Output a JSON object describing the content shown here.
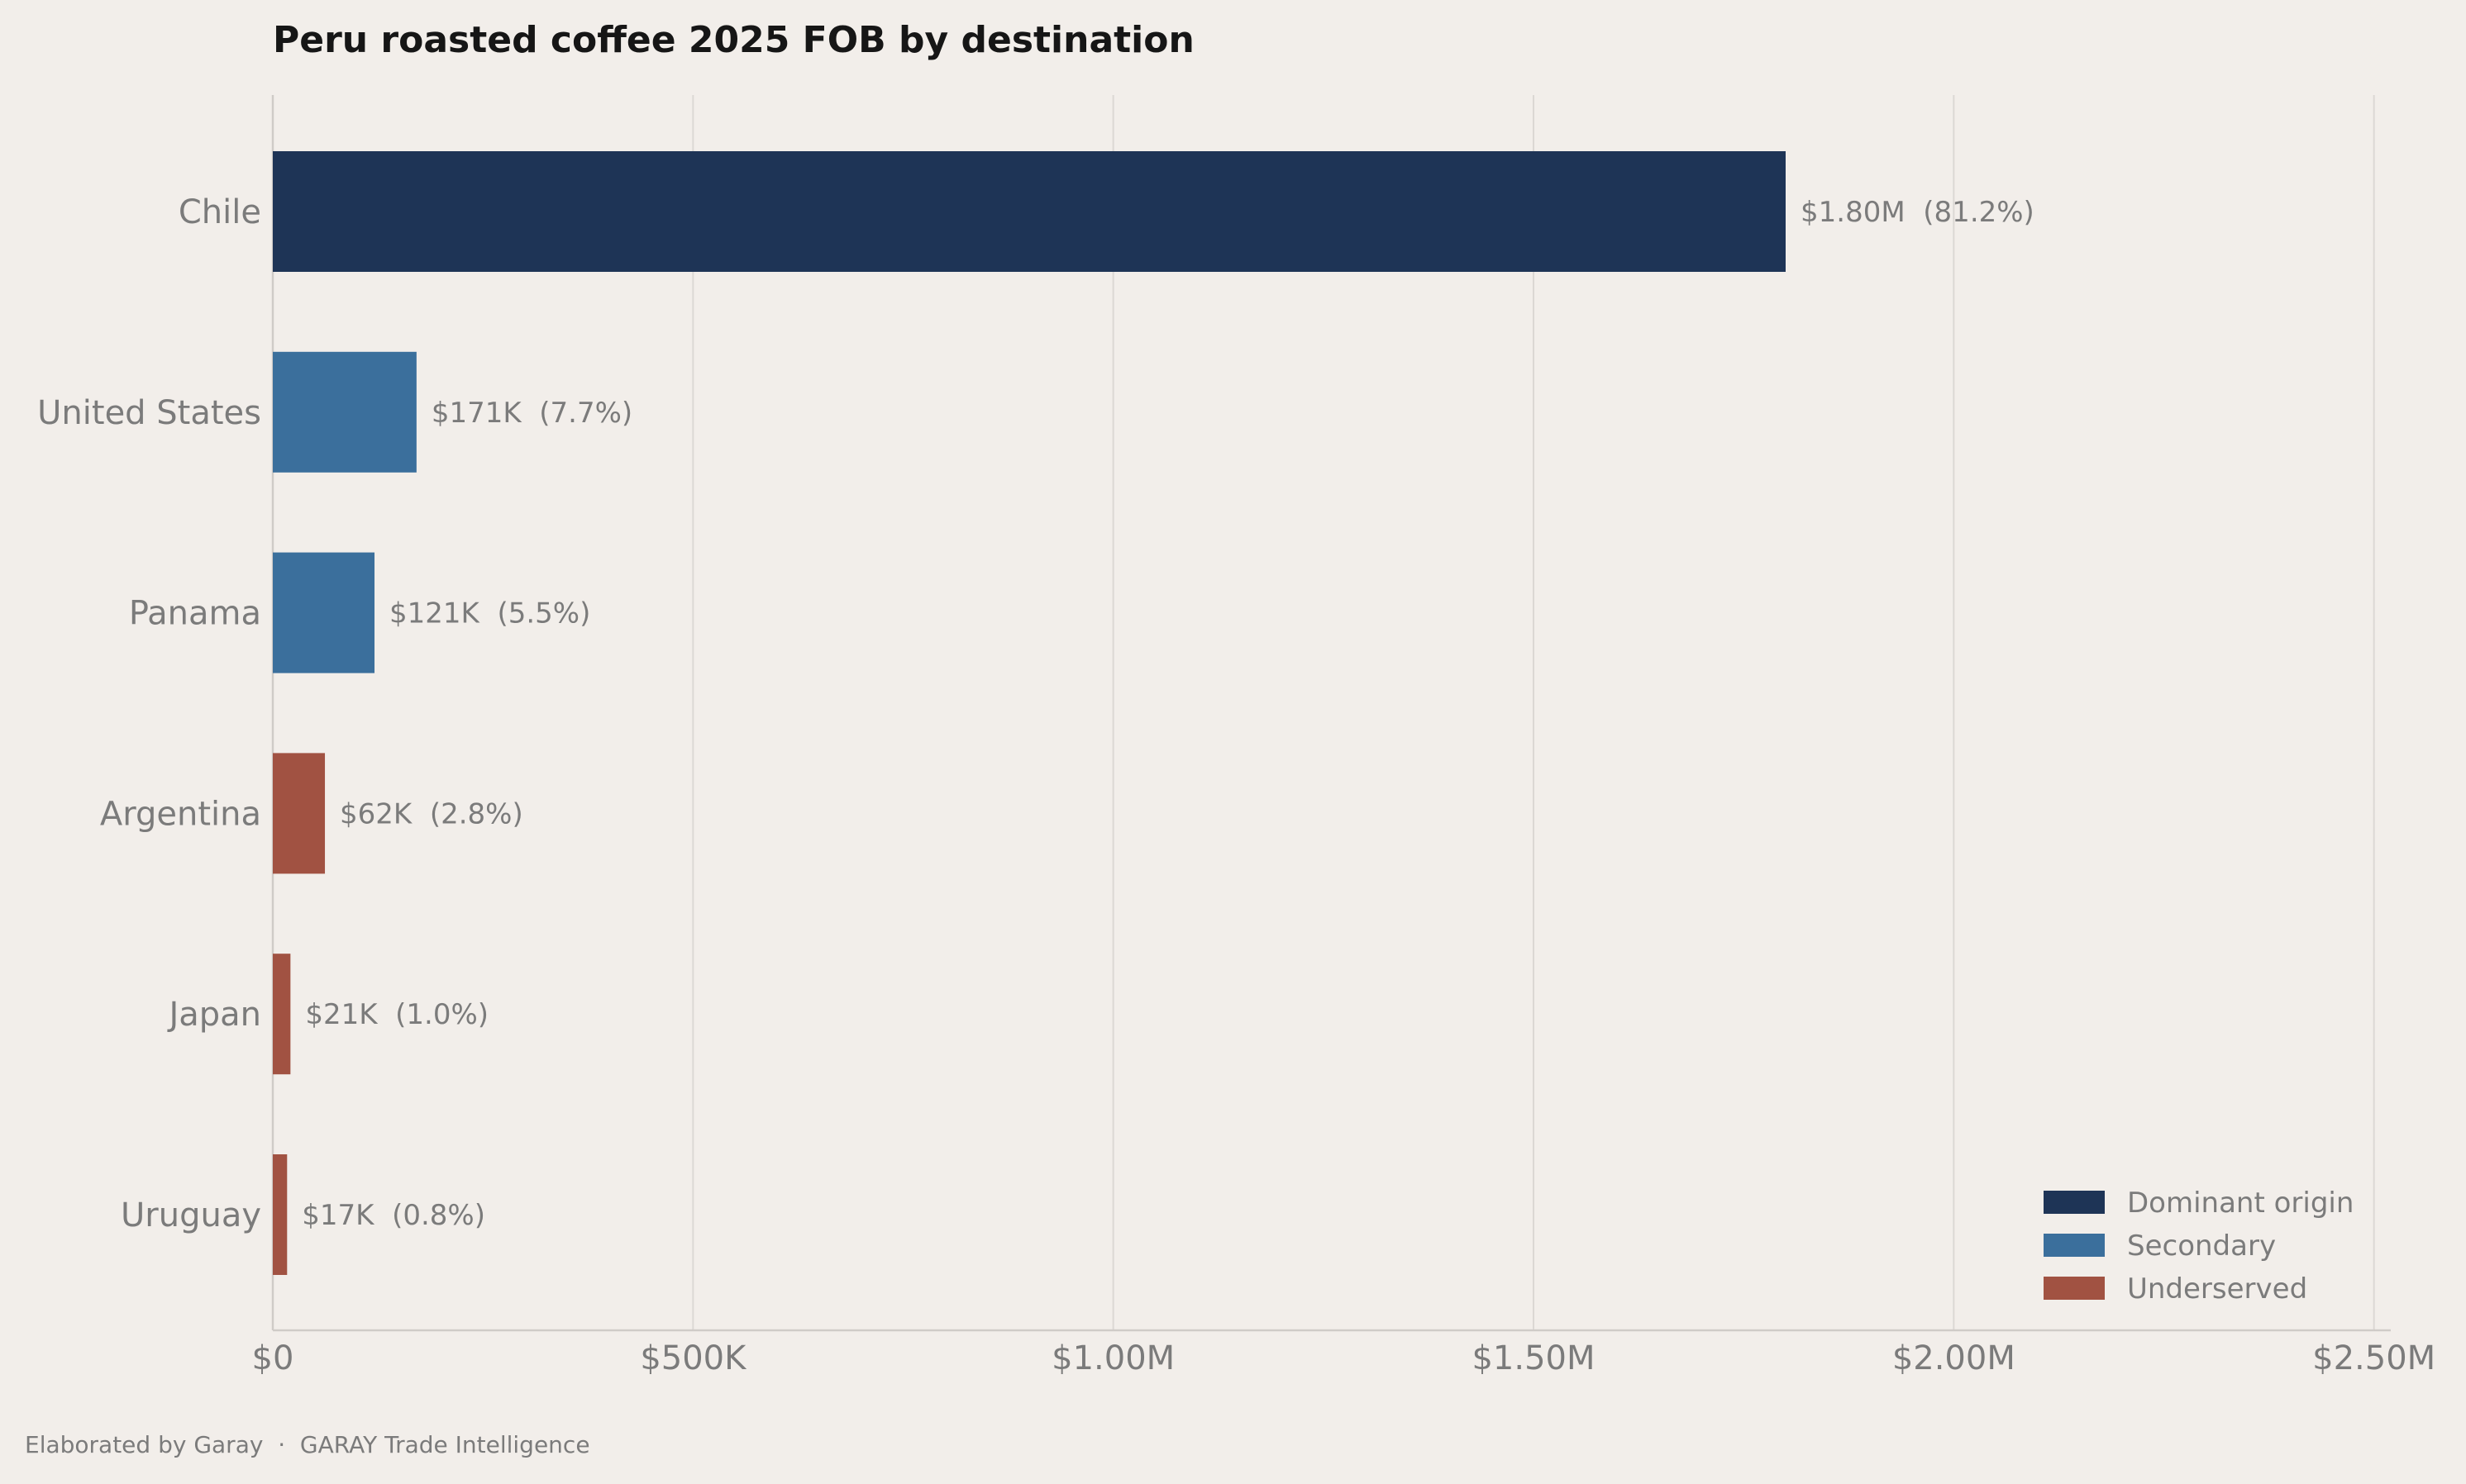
{
  "chart_data": {
    "type": "bar",
    "orientation": "horizontal",
    "title": "Peru roasted coffee 2025 FOB by destination",
    "categories": [
      "Chile",
      "United States",
      "Panama",
      "Argentina",
      "Japan",
      "Uruguay"
    ],
    "values": [
      1800000,
      171000,
      121000,
      62000,
      21000,
      17000
    ],
    "data_labels": [
      "$1.80M  (81.2%)",
      "$171K  (7.7%)",
      "$121K  (5.5%)",
      "$62K  (2.8%)",
      "$21K  (1.0%)",
      "$17K  (0.8%)"
    ],
    "groups": [
      "Dominant origin",
      "Secondary",
      "Secondary",
      "Underserved",
      "Underserved",
      "Underserved"
    ],
    "xlim": [
      0,
      2520000
    ],
    "x_ticks": [
      0,
      500000,
      1000000,
      1500000,
      2000000,
      2500000
    ],
    "x_tick_labels": [
      "$0",
      "$500K",
      "$1.00M",
      "$1.50M",
      "$2.00M",
      "$2.50M"
    ],
    "xlabel": "",
    "ylabel": "",
    "grid": "vertical",
    "legend": {
      "placement": "bottom-right",
      "entries": [
        {
          "label": "Dominant origin",
          "color": "#1e3456"
        },
        {
          "label": "Secondary",
          "color": "#3b6f9c"
        },
        {
          "label": "Underserved",
          "color": "#a15242"
        }
      ]
    }
  },
  "footer": "Elaborated by Garay  ·  GARAY Trade Intelligence",
  "colors": {
    "background": "#f2eeea",
    "grid": "#dcd8d4",
    "axis": "#cfcbc7"
  }
}
